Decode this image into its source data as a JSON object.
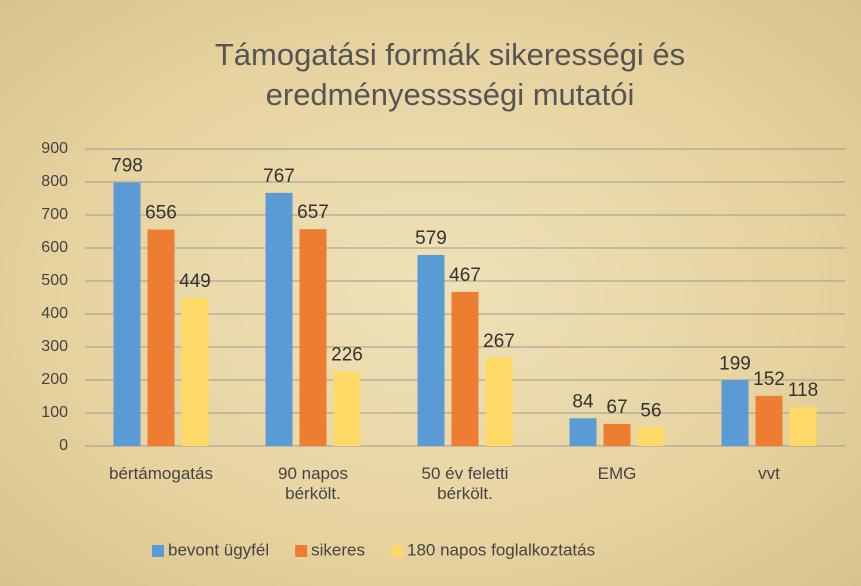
{
  "chart_data": {
    "type": "bar",
    "title": [
      "Támogatási formák sikerességi és",
      "eredményesssségi mutatói"
    ],
    "categories": [
      "bértámogatás",
      "90 napos bérkölt.",
      "50 év feletti bérkölt.",
      "EMG",
      "vvt"
    ],
    "series": [
      {
        "name": "bevont ügyfél",
        "color": "#5b9bd5",
        "values": [
          798,
          767,
          579,
          84,
          199
        ]
      },
      {
        "name": "sikeres",
        "color": "#ed7d31",
        "values": [
          656,
          657,
          467,
          67,
          152
        ]
      },
      {
        "name": "180 napos foglalkoztatás",
        "color": "#ffd966",
        "values": [
          449,
          226,
          267,
          56,
          118
        ]
      }
    ],
    "ylim": [
      0,
      900
    ],
    "yticks": [
      0,
      100,
      200,
      300,
      400,
      500,
      600,
      700,
      800,
      900
    ],
    "grid": true,
    "legend": "bottom"
  }
}
